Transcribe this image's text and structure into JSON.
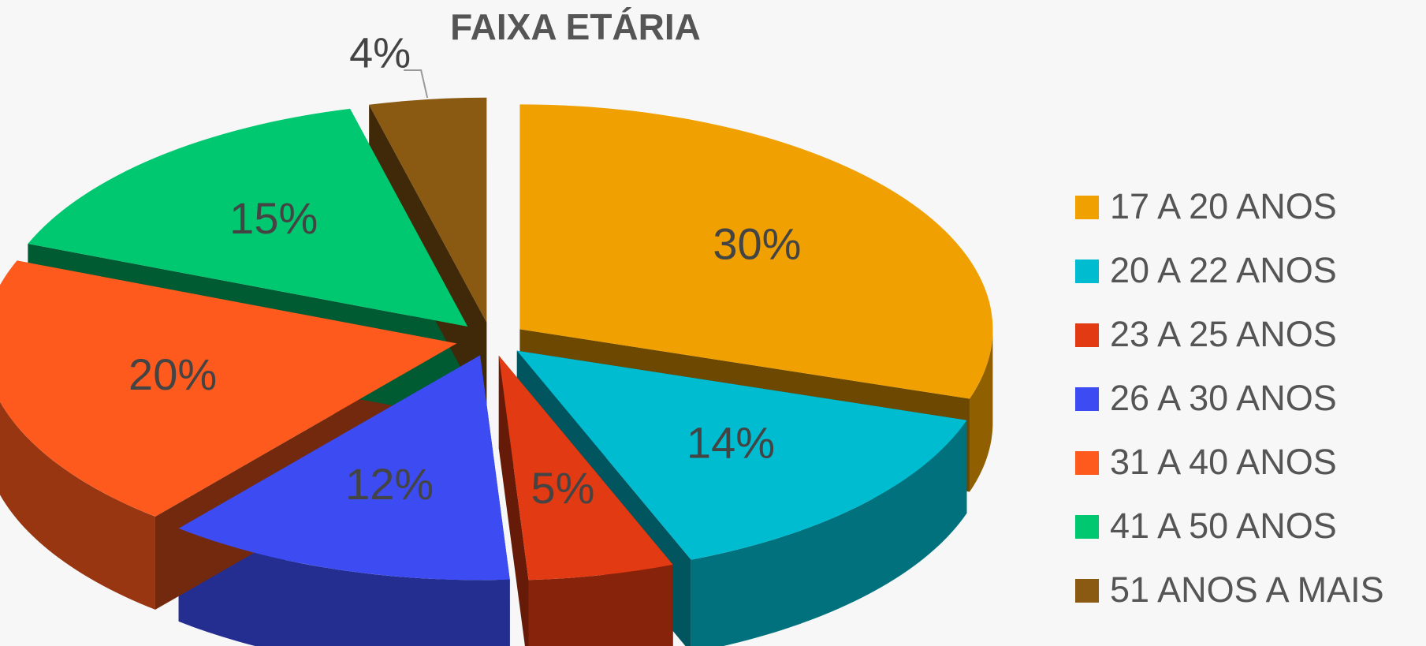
{
  "chart_data": {
    "type": "pie",
    "title": "FAIXA ETÁRIA",
    "categories": [
      "17 A 20 ANOS",
      "20 A 22 ANOS",
      "23 A 25 ANOS",
      "26 A 30 ANOS",
      "31 A 40 ANOS",
      "41 A 50 ANOS",
      "51 ANOS A MAIS"
    ],
    "values": [
      30,
      14,
      5,
      12,
      20,
      15,
      4
    ],
    "value_labels": [
      "30%",
      "14%",
      "5%",
      "12%",
      "20%",
      "15%",
      "4%"
    ],
    "colors": [
      "#f0a000",
      "#00bcd0",
      "#e23a12",
      "#3c4cf2",
      "#ff5a1e",
      "#00c870",
      "#8b5a12"
    ],
    "legend": "right"
  }
}
